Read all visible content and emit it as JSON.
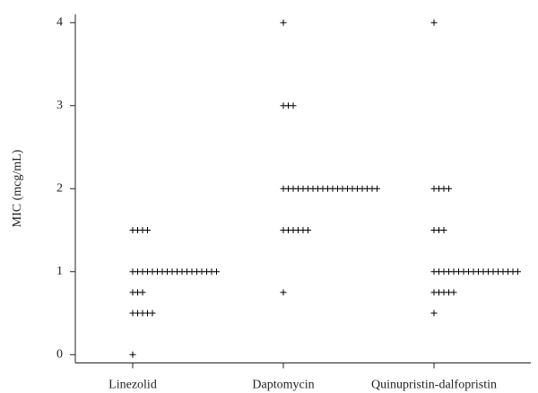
{
  "chart_data": {
    "type": "scatter",
    "y_label": "MIC (mcg/mL)",
    "categories": [
      "Linezolid",
      "Daptomycin",
      "Quinupristin-dalfopristin"
    ],
    "series": [
      {
        "name": "Linezolid",
        "color": "#000000",
        "values": [
          0,
          0.5,
          0.5,
          0.5,
          0.5,
          0.5,
          0.75,
          0.75,
          0.75,
          1,
          1,
          1,
          1,
          1,
          1,
          1,
          1,
          1,
          1,
          1,
          1,
          1,
          1,
          1,
          1,
          1,
          1,
          1.5,
          1.5,
          1.5,
          1.5
        ]
      },
      {
        "name": "Daptomycin",
        "color": "#000000",
        "values": [
          0.75,
          1.5,
          1.5,
          1.5,
          1.5,
          1.5,
          1.5,
          2,
          2,
          2,
          2,
          2,
          2,
          2,
          2,
          2,
          2,
          2,
          2,
          2,
          2,
          2,
          2,
          2,
          2,
          2,
          2,
          3,
          3,
          3,
          4
        ]
      },
      {
        "name": "Quinupristin-dalfopristin",
        "color": "#000000",
        "values": [
          0.5,
          0.75,
          0.75,
          0.75,
          0.75,
          0.75,
          1,
          1,
          1,
          1,
          1,
          1,
          1,
          1,
          1,
          1,
          1,
          1,
          1,
          1,
          1,
          1,
          1,
          1,
          1.5,
          1.5,
          1.5,
          2,
          2,
          2,
          2,
          4
        ]
      }
    ],
    "ylim": [
      -0.1,
      4.1
    ],
    "yticks": [
      0,
      1,
      2,
      3,
      4
    ]
  }
}
